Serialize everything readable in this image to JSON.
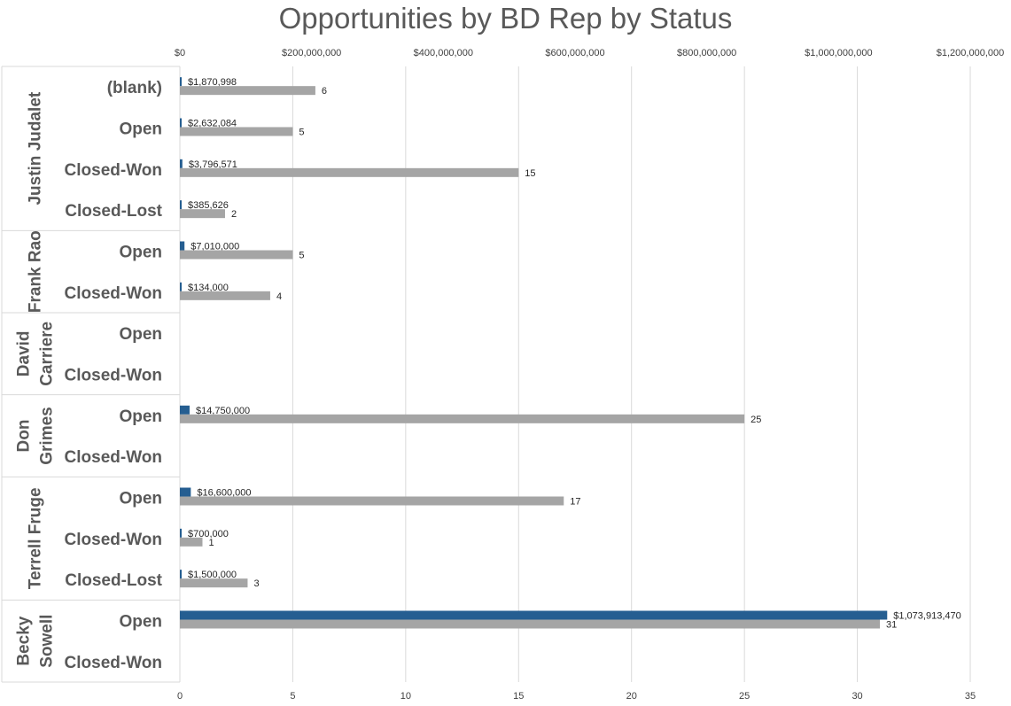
{
  "chart_data": {
    "type": "bar",
    "orientation": "horizontal",
    "title": "Opportunities by BD Rep by Status",
    "colors": {
      "amount": "#255E91",
      "count": "#A5A5A5",
      "grid": "#D9D9D9",
      "text": "#595959"
    },
    "top_axis": {
      "min": 0,
      "max": 1200000000,
      "ticks": [
        "$0",
        "$200,000,000",
        "$400,000,000",
        "$600,000,000",
        "$800,000,000",
        "$1,000,000,000",
        "$1,200,000,000"
      ]
    },
    "bottom_axis": {
      "min": 0,
      "max": 35,
      "ticks": [
        "0",
        "5",
        "10",
        "15",
        "20",
        "25",
        "30",
        "35"
      ]
    },
    "groups": [
      {
        "rep": [
          "Justin Judalet"
        ],
        "rows": [
          {
            "status": "(blank)",
            "amount": 1870998,
            "amount_label": "$1,870,998",
            "count": 6,
            "count_label": "6"
          },
          {
            "status": "Open",
            "amount": 2632084,
            "amount_label": "$2,632,084",
            "count": 5,
            "count_label": "5"
          },
          {
            "status": "Closed-Won",
            "amount": 3796571,
            "amount_label": "$3,796,571",
            "count": 15,
            "count_label": "15"
          },
          {
            "status": "Closed-Lost",
            "amount": 385626,
            "amount_label": "$385,626",
            "count": 2,
            "count_label": "2"
          }
        ]
      },
      {
        "rep": [
          "Frank Rao"
        ],
        "rows": [
          {
            "status": "Open",
            "amount": 7010000,
            "amount_label": "$7,010,000",
            "count": 5,
            "count_label": "5"
          },
          {
            "status": "Closed-Won",
            "amount": 134000,
            "amount_label": "$134,000",
            "count": 4,
            "count_label": "4"
          }
        ]
      },
      {
        "rep": [
          "David",
          "Carriere"
        ],
        "rows": [
          {
            "status": "Open",
            "amount": null,
            "amount_label": "",
            "count": null,
            "count_label": ""
          },
          {
            "status": "Closed-Won",
            "amount": null,
            "amount_label": "",
            "count": null,
            "count_label": ""
          }
        ]
      },
      {
        "rep": [
          "Don",
          "Grimes"
        ],
        "rows": [
          {
            "status": "Open",
            "amount": 14750000,
            "amount_label": "$14,750,000",
            "count": 25,
            "count_label": "25"
          },
          {
            "status": "Closed-Won",
            "amount": null,
            "amount_label": "",
            "count": null,
            "count_label": ""
          }
        ]
      },
      {
        "rep": [
          "Terrell Fruge"
        ],
        "rows": [
          {
            "status": "Open",
            "amount": 16600000,
            "amount_label": "$16,600,000",
            "count": 17,
            "count_label": "17"
          },
          {
            "status": "Closed-Won",
            "amount": 700000,
            "amount_label": "$700,000",
            "count": 1,
            "count_label": "1"
          },
          {
            "status": "Closed-Lost",
            "amount": 1500000,
            "amount_label": "$1,500,000",
            "count": 3,
            "count_label": "3"
          }
        ]
      },
      {
        "rep": [
          "Becky",
          "Sowell"
        ],
        "rows": [
          {
            "status": "Open",
            "amount": 1073913470,
            "amount_label": "$1,073,913,470",
            "count": 31,
            "count_label": "31"
          },
          {
            "status": "Closed-Won",
            "amount": null,
            "amount_label": "",
            "count": null,
            "count_label": ""
          }
        ]
      }
    ]
  }
}
